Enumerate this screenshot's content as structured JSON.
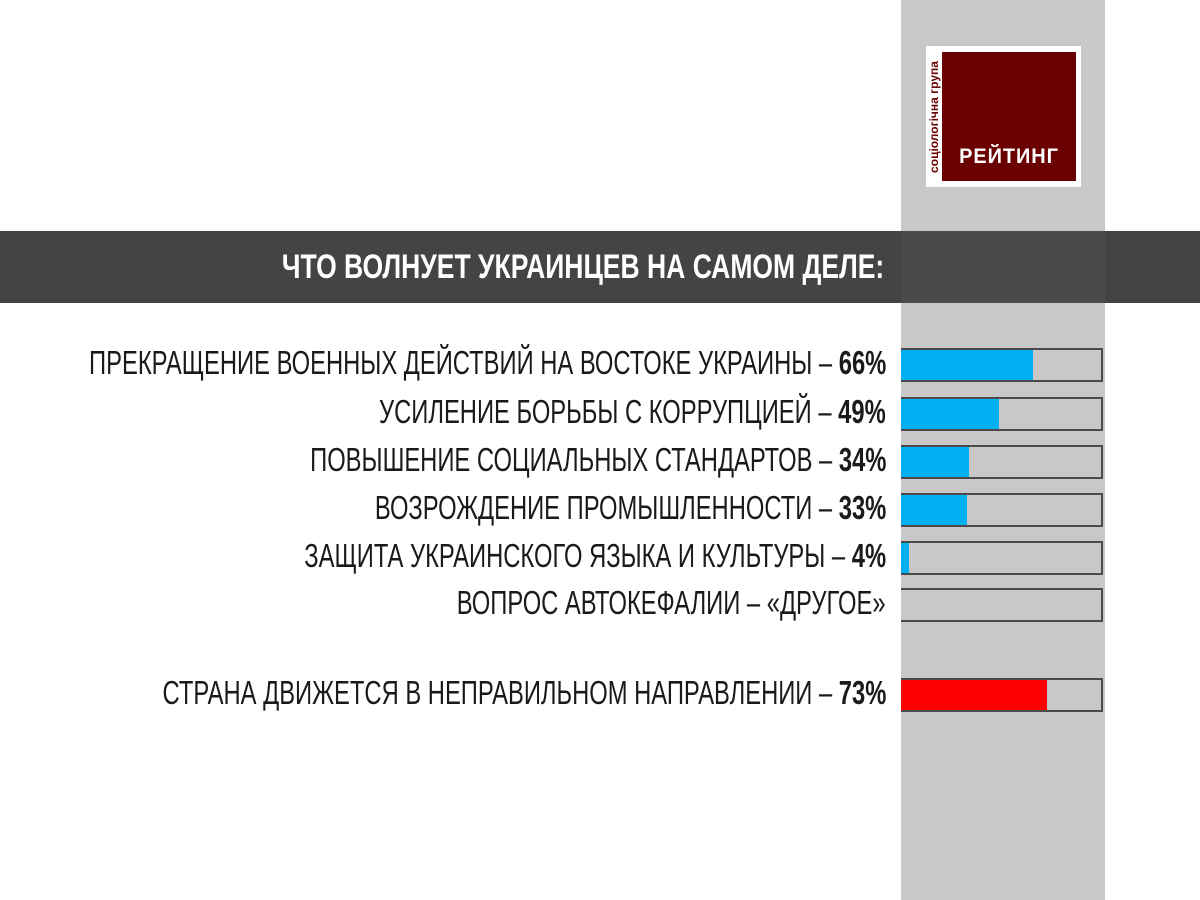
{
  "brand": {
    "side_text": "соціологічна група",
    "name": "РЕЙТИНГ",
    "color": "#6b0000"
  },
  "chart_data": {
    "type": "bar",
    "orientation": "horizontal",
    "title": "ЧТО ВОЛНУЕТ УКРАИНЦЕВ НА САМОМ ДЕЛЕ:",
    "xlim": [
      0,
      100
    ],
    "grid": false,
    "items": [
      {
        "label": "ПРЕКРАЩЕНИЕ ВОЕННЫХ ДЕЙСТВИЙ НА ВОСТОКЕ УКРАИНЫ",
        "sep": " – ",
        "value_text": "66%",
        "value": 66,
        "color": "#00b0f0"
      },
      {
        "label": "УСИЛЕНИЕ БОРЬБЫ С КОРРУПЦИЕЙ",
        "sep": " – ",
        "value_text": "49%",
        "value": 49,
        "color": "#00b0f0"
      },
      {
        "label": "ПОВЫШЕНИЕ СОЦИАЛЬНЫХ СТАНДАРТОВ",
        "sep": " – ",
        "value_text": "34%",
        "value": 34,
        "color": "#00b0f0"
      },
      {
        "label": "ВОЗРОЖДЕНИЕ ПРОМЫШЛЕННОСТИ",
        "sep": " – ",
        "value_text": "33%",
        "value": 33,
        "color": "#00b0f0"
      },
      {
        "label": "ЗАЩИТА УКРАИНСКОГО ЯЗЫКА И КУЛЬТУРЫ",
        "sep": " – ",
        "value_text": "4%",
        "value": 4,
        "color": "#00b0f0"
      },
      {
        "label": "ВОПРОС АВТОКЕФАЛИИ – «ДРУГОЕ»",
        "sep": "",
        "value_text": "",
        "value": 0,
        "color": "#00b0f0"
      },
      {
        "label": "СТРАНА ДВИЖЕТСЯ В НЕПРАВИЛЬНОМ НАПРАВЛЕНИИ",
        "sep": " – ",
        "value_text": "73%",
        "value": 73,
        "color": "#ff0000"
      }
    ]
  }
}
